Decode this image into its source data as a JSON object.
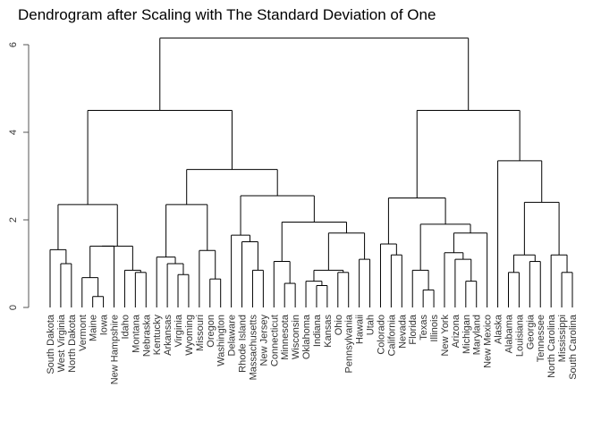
{
  "chart_data": {
    "type": "dendrogram",
    "title": "Dendrogram after Scaling with The Standard Deviation of One",
    "xlabel": "",
    "ylabel": "",
    "ylim": [
      0,
      6.1
    ],
    "yticks": [
      0,
      2,
      4,
      6
    ],
    "leaves": [
      "South Dakota",
      "West Virginia",
      "North Dakota",
      "Vermont",
      "Maine",
      "Iowa",
      "New Hampshire",
      "Idaho",
      "Montana",
      "Nebraska",
      "Kentucky",
      "Arkansas",
      "Virginia",
      "Wyoming",
      "Missouri",
      "Oregon",
      "Washington",
      "Delaware",
      "Rhode Island",
      "Massachusetts",
      "New Jersey",
      "Connecticut",
      "Minnesota",
      "Wisconsin",
      "Oklahoma",
      "Indiana",
      "Kansas",
      "Ohio",
      "Pennsylvania",
      "Hawaii",
      "Utah",
      "Colorado",
      "California",
      "Nevada",
      "Florida",
      "Texas",
      "Illinois",
      "New York",
      "Arizona",
      "Michigan",
      "Maryland",
      "New Mexico",
      "Alaska",
      "Alabama",
      "Louisiana",
      "Georgia",
      "Tennessee",
      "North Carolina",
      "Mississippi",
      "South Carolina"
    ],
    "merges": [
      [
        0,
        0,
        0.75
      ],
      [
        1,
        2,
        1.0
      ],
      [
        0,
        1,
        1.32
      ],
      [
        3,
        3,
        0.68
      ],
      [
        4,
        5,
        0.25
      ],
      [
        3,
        4,
        1.4
      ],
      [
        5,
        6,
        0.85
      ],
      [
        6,
        7,
        0.8
      ],
      [
        5,
        6,
        1.4
      ],
      [
        0,
        3,
        2.35
      ],
      [
        8,
        8,
        1.15
      ],
      [
        9,
        9,
        1.0
      ],
      [
        10,
        11,
        0.75
      ],
      [
        9,
        10,
        1.0
      ],
      [
        11,
        12,
        1.3
      ],
      [
        12,
        13,
        0.65
      ],
      [
        11,
        12,
        1.3
      ],
      [
        8,
        11,
        2.35
      ],
      [
        14,
        14,
        1.65
      ],
      [
        15,
        15,
        1.5
      ],
      [
        16,
        17,
        0.85
      ],
      [
        15,
        16,
        1.5
      ],
      [
        14,
        15,
        1.65
      ],
      [
        18,
        19,
        1.05
      ],
      [
        20,
        21,
        0.55
      ],
      [
        19,
        20,
        1.05
      ],
      [
        22,
        23,
        0.6
      ],
      [
        23,
        24,
        0.5
      ],
      [
        22,
        23,
        0.85
      ],
      [
        24,
        25,
        0.8
      ],
      [
        23,
        24,
        0.85
      ],
      [
        26,
        26,
        1.1
      ],
      [
        25,
        26,
        1.7
      ],
      [
        24,
        25,
        1.95
      ],
      [
        19,
        20,
        1.95
      ],
      [
        21,
        22,
        2.55
      ],
      [
        8,
        9,
        3.15
      ],
      [
        0,
        1,
        4.5
      ],
      [
        27,
        28,
        1.45
      ],
      [
        28,
        29,
        1.2
      ],
      [
        30,
        31,
        0.85
      ],
      [
        32,
        33,
        0.4
      ],
      [
        31,
        32,
        0.85
      ],
      [
        33,
        34,
        1.25
      ],
      [
        34,
        35,
        1.1
      ],
      [
        35,
        36,
        0.6
      ],
      [
        34,
        35,
        1.1
      ],
      [
        33,
        34,
        1.25
      ],
      [
        31,
        32,
        1.7
      ],
      [
        30,
        31,
        1.9
      ],
      [
        27,
        28,
        2.5
      ],
      [
        37,
        38,
        0.8
      ],
      [
        39,
        40,
        1.05
      ],
      [
        38,
        39,
        1.2
      ],
      [
        41,
        42,
        0.8
      ],
      [
        40,
        41,
        1.2
      ],
      [
        38,
        39,
        2.4
      ],
      [
        36,
        37,
        3.35
      ],
      [
        35,
        36,
        4.5
      ],
      [
        0,
        1,
        6.15
      ]
    ]
  }
}
